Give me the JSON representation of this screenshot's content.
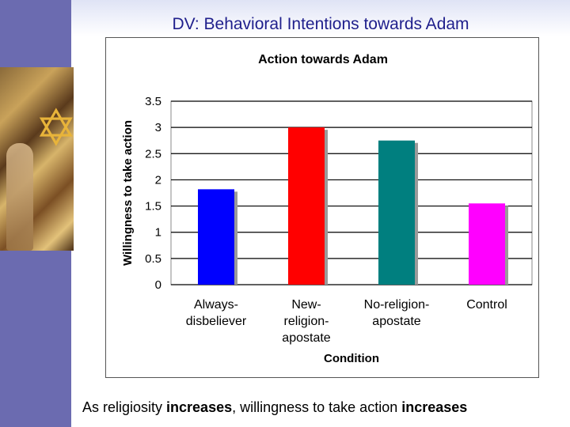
{
  "slide": {
    "title": "DV: Behavioral Intentions towards Adam",
    "caption": {
      "part1": "As religiosity ",
      "bold1": "increases",
      "part2": ", willingness to take action ",
      "bold2": "increases"
    }
  },
  "colors": {
    "sidebar": "#6b6bb0",
    "title_text": "#1f1f8c"
  },
  "chart_data": {
    "type": "bar",
    "title": "Action towards Adam",
    "xlabel": "Condition",
    "ylabel": "Willingness to take action",
    "ylim": [
      0,
      3.5
    ],
    "yticks": [
      "0",
      "0.5",
      "1",
      "1.5",
      "2",
      "2.5",
      "3",
      "3.5"
    ],
    "grid": true,
    "categories": [
      [
        "Always-",
        "disbeliever"
      ],
      [
        "New-",
        "religion-",
        "apostate"
      ],
      [
        "No-religion-",
        "apostate"
      ],
      [
        "Control"
      ]
    ],
    "values": [
      1.82,
      3.0,
      2.75,
      1.55
    ],
    "bar_colors": [
      "#0000ff",
      "#ff0000",
      "#007f7f",
      "#ff00ff"
    ]
  }
}
